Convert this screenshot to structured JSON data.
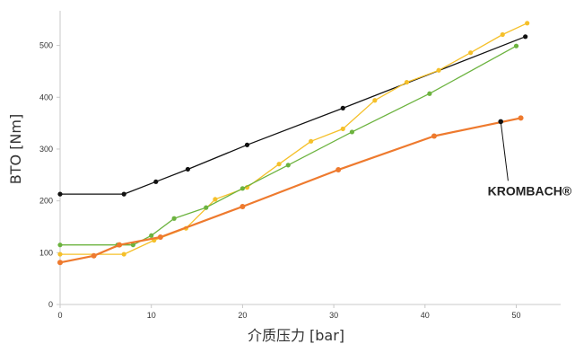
{
  "chart_data": {
    "type": "line",
    "xlabel": "介质压力 [bar]",
    "ylabel": "BTO [Nm]",
    "xlim": [
      0,
      55
    ],
    "ylim": [
      0,
      560
    ],
    "x_ticks": [
      "0",
      "10",
      "20",
      "30",
      "40",
      "50"
    ],
    "y_ticks": [
      "0",
      "100",
      "200",
      "300",
      "400",
      "500"
    ],
    "grid": false,
    "legend": "none",
    "series": [
      {
        "color": "#111111",
        "stroke_width": 1.3,
        "points": [
          [
            0,
            213
          ],
          [
            7,
            213
          ],
          [
            10.5,
            237
          ],
          [
            14,
            261
          ],
          [
            20.5,
            308
          ],
          [
            31,
            379
          ],
          [
            51,
            517
          ]
        ]
      },
      {
        "color": "#f5c02a",
        "stroke_width": 1.3,
        "points": [
          [
            0,
            97
          ],
          [
            7,
            97
          ],
          [
            10.3,
            124
          ],
          [
            13.8,
            147
          ],
          [
            17,
            203
          ],
          [
            20.5,
            226
          ],
          [
            24,
            271
          ],
          [
            27.5,
            315
          ],
          [
            31,
            339
          ],
          [
            34.5,
            394
          ],
          [
            38,
            429
          ],
          [
            41.5,
            452
          ],
          [
            45,
            486
          ],
          [
            48.5,
            521
          ],
          [
            51.2,
            543
          ]
        ]
      },
      {
        "color": "#6cb33f",
        "stroke_width": 1.3,
        "points": [
          [
            0,
            115
          ],
          [
            6.3,
            115
          ],
          [
            8,
            115
          ],
          [
            10,
            133
          ],
          [
            12.5,
            166
          ],
          [
            16,
            187
          ],
          [
            20,
            224
          ],
          [
            25,
            269
          ],
          [
            32,
            333
          ],
          [
            40.5,
            407
          ],
          [
            50,
            499
          ]
        ]
      },
      {
        "color": "#ee7a2e",
        "stroke_width": 2.2,
        "points": [
          [
            0,
            81
          ],
          [
            3.7,
            94
          ],
          [
            6.5,
            115
          ],
          [
            11,
            130
          ],
          [
            20,
            189
          ],
          [
            30.5,
            260
          ],
          [
            41,
            325
          ],
          [
            50.5,
            360
          ]
        ]
      }
    ],
    "annotation": {
      "text": "KROMBACH®",
      "x": 48.3,
      "y": 353,
      "text_x": 49.5,
      "text_y": 218,
      "color": "#111111"
    }
  }
}
